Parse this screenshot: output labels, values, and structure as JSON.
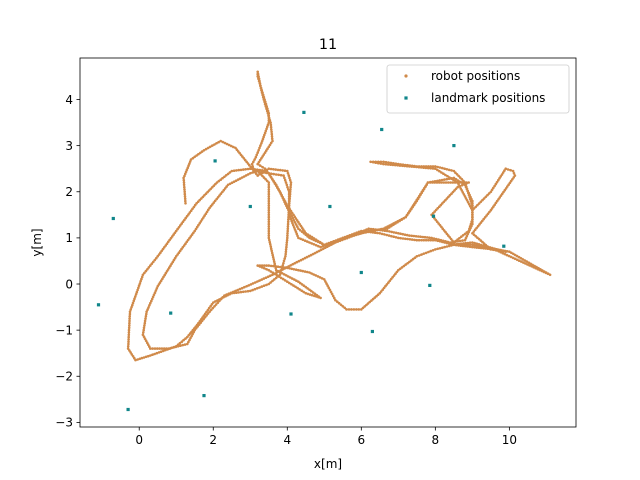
{
  "chart_data": {
    "type": "scatter",
    "title": "11",
    "xlabel": "x[m]",
    "ylabel": "y[m]",
    "xlim": [
      -1.6,
      11.8
    ],
    "ylim": [
      -3.1,
      4.9
    ],
    "xticks": [
      0,
      2,
      4,
      6,
      8,
      10
    ],
    "yticks": [
      -3,
      -2,
      -1,
      0,
      1,
      2,
      3,
      4
    ],
    "grid": false,
    "legend_position": "top-right",
    "colors": {
      "robot": "#d08a4a",
      "landmark": "#10868a"
    },
    "series": [
      {
        "name": "robot positions",
        "marker": "dot",
        "path": [
          [
            1.25,
            1.75
          ],
          [
            1.2,
            2.3
          ],
          [
            1.4,
            2.7
          ],
          [
            1.75,
            2.9
          ],
          [
            2.2,
            3.1
          ],
          [
            2.6,
            2.95
          ],
          [
            2.9,
            2.65
          ],
          [
            3.2,
            2.35
          ],
          [
            3.5,
            2.5
          ],
          [
            4.0,
            2.45
          ],
          [
            4.1,
            2.2
          ],
          [
            4.05,
            1.7
          ],
          [
            4.0,
            1.0
          ],
          [
            3.95,
            0.6
          ],
          [
            3.8,
            0.2
          ],
          [
            3.5,
            0.0
          ],
          [
            3.0,
            -0.15
          ],
          [
            2.5,
            -0.2
          ],
          [
            2.0,
            -0.4
          ],
          [
            1.6,
            -0.85
          ],
          [
            1.3,
            -1.15
          ],
          [
            1.0,
            -1.35
          ],
          [
            0.3,
            -1.55
          ],
          [
            -0.1,
            -1.65
          ],
          [
            -0.3,
            -1.4
          ],
          [
            -0.25,
            -0.6
          ],
          [
            0.1,
            0.2
          ],
          [
            0.5,
            0.6
          ],
          [
            1.0,
            1.15
          ],
          [
            1.55,
            1.75
          ],
          [
            2.1,
            2.2
          ],
          [
            2.5,
            2.45
          ],
          [
            3.0,
            2.5
          ],
          [
            3.45,
            2.45
          ],
          [
            3.7,
            2.15
          ],
          [
            4.0,
            1.7
          ],
          [
            4.5,
            1.1
          ],
          [
            5.0,
            0.85
          ],
          [
            5.5,
            1.0
          ],
          [
            6.0,
            1.15
          ],
          [
            6.5,
            1.1
          ],
          [
            7.0,
            1.0
          ],
          [
            7.5,
            0.95
          ],
          [
            8.0,
            0.95
          ],
          [
            8.5,
            0.85
          ],
          [
            9.0,
            0.8
          ],
          [
            9.6,
            0.75
          ],
          [
            11.1,
            0.2
          ],
          [
            10.0,
            0.7
          ],
          [
            9.0,
            0.85
          ],
          [
            8.5,
            0.85
          ],
          [
            8.0,
            0.75
          ],
          [
            7.5,
            0.6
          ],
          [
            7.0,
            0.3
          ],
          [
            6.5,
            -0.2
          ],
          [
            6.0,
            -0.55
          ],
          [
            5.6,
            -0.55
          ],
          [
            5.3,
            -0.35
          ],
          [
            5.0,
            0.1
          ],
          [
            4.6,
            0.25
          ],
          [
            4.0,
            0.35
          ],
          [
            3.5,
            0.4
          ],
          [
            3.2,
            0.4
          ],
          [
            3.5,
            0.3
          ],
          [
            4.0,
            0.05
          ],
          [
            4.5,
            -0.2
          ],
          [
            4.9,
            -0.3
          ],
          [
            4.3,
            0.05
          ],
          [
            3.7,
            0.3
          ],
          [
            3.5,
            1.0
          ],
          [
            3.5,
            1.5
          ],
          [
            3.5,
            2.2
          ],
          [
            3.2,
            2.45
          ],
          [
            3.0,
            2.4
          ],
          [
            2.4,
            2.15
          ],
          [
            1.9,
            1.65
          ],
          [
            1.5,
            1.15
          ],
          [
            1.0,
            0.6
          ],
          [
            0.5,
            -0.05
          ],
          [
            0.2,
            -0.6
          ],
          [
            0.1,
            -1.1
          ],
          [
            0.3,
            -1.4
          ],
          [
            0.8,
            -1.4
          ],
          [
            1.3,
            -1.3
          ],
          [
            1.5,
            -1.0
          ],
          [
            1.9,
            -0.6
          ],
          [
            2.3,
            -0.25
          ],
          [
            2.9,
            -0.05
          ],
          [
            3.6,
            0.2
          ],
          [
            4.2,
            0.45
          ],
          [
            4.7,
            0.65
          ],
          [
            5.3,
            0.9
          ],
          [
            5.8,
            1.05
          ],
          [
            6.2,
            1.15
          ],
          [
            6.7,
            1.2
          ],
          [
            7.2,
            1.45
          ],
          [
            7.5,
            1.8
          ],
          [
            7.8,
            2.2
          ],
          [
            8.5,
            2.3
          ],
          [
            8.8,
            2.15
          ],
          [
            9.0,
            1.8
          ],
          [
            9.0,
            1.4
          ],
          [
            8.9,
            1.15
          ],
          [
            8.5,
            0.9
          ],
          [
            7.9,
            1.5
          ],
          [
            8.6,
            2.1
          ],
          [
            8.9,
            2.2
          ],
          [
            7.8,
            2.2
          ],
          [
            7.2,
            1.45
          ],
          [
            6.6,
            1.2
          ],
          [
            6.0,
            1.1
          ],
          [
            5.5,
            1.0
          ],
          [
            5.2,
            0.9
          ],
          [
            5.0,
            0.85
          ],
          [
            4.6,
            1.0
          ],
          [
            4.3,
            1.2
          ],
          [
            4.0,
            1.65
          ],
          [
            3.8,
            2.0
          ],
          [
            3.5,
            2.4
          ],
          [
            3.4,
            2.5
          ],
          [
            3.2,
            2.6
          ],
          [
            3.4,
            2.85
          ],
          [
            3.6,
            3.1
          ],
          [
            3.55,
            3.5
          ],
          [
            3.4,
            3.9
          ],
          [
            3.3,
            4.2
          ],
          [
            3.2,
            4.6
          ],
          [
            3.2,
            4.5
          ],
          [
            3.35,
            4.1
          ],
          [
            3.5,
            3.7
          ],
          [
            3.5,
            3.5
          ],
          [
            3.3,
            3.05
          ],
          [
            3.15,
            2.75
          ],
          [
            3.05,
            2.6
          ],
          [
            3.1,
            2.45
          ],
          [
            3.5,
            2.4
          ],
          [
            3.9,
            2.35
          ],
          [
            4.05,
            2.0
          ],
          [
            4.05,
            1.5
          ],
          [
            4.3,
            1.0
          ],
          [
            4.9,
            0.8
          ],
          [
            5.4,
            0.95
          ],
          [
            5.9,
            1.1
          ],
          [
            6.2,
            1.2
          ],
          [
            6.7,
            1.15
          ],
          [
            7.3,
            1.05
          ],
          [
            7.9,
            1.0
          ],
          [
            8.4,
            0.9
          ],
          [
            8.8,
            0.95
          ],
          [
            9.0,
            1.3
          ],
          [
            9.0,
            1.7
          ],
          [
            8.8,
            2.2
          ],
          [
            8.5,
            2.45
          ],
          [
            8.0,
            2.55
          ],
          [
            7.5,
            2.55
          ],
          [
            7.0,
            2.6
          ],
          [
            6.6,
            2.65
          ],
          [
            6.25,
            2.65
          ],
          [
            6.6,
            2.6
          ],
          [
            7.3,
            2.55
          ],
          [
            8.0,
            2.5
          ],
          [
            8.6,
            2.2
          ],
          [
            9.0,
            1.6
          ],
          [
            9.5,
            2.0
          ],
          [
            9.9,
            2.5
          ],
          [
            10.1,
            2.45
          ],
          [
            10.15,
            2.35
          ],
          [
            9.5,
            1.6
          ],
          [
            9.0,
            1.1
          ],
          [
            9.5,
            0.75
          ],
          [
            9.9,
            0.7
          ],
          [
            9.0,
            0.9
          ],
          [
            8.4,
            0.85
          ]
        ]
      },
      {
        "name": "landmark positions",
        "marker": "square",
        "points": [
          [
            -1.1,
            -0.45
          ],
          [
            -0.7,
            1.42
          ],
          [
            -0.3,
            -2.72
          ],
          [
            0.85,
            -0.63
          ],
          [
            1.75,
            -2.42
          ],
          [
            2.05,
            2.67
          ],
          [
            3.0,
            1.68
          ],
          [
            4.1,
            -0.65
          ],
          [
            4.45,
            3.72
          ],
          [
            5.15,
            1.68
          ],
          [
            6.0,
            0.25
          ],
          [
            6.3,
            -1.03
          ],
          [
            6.55,
            3.35
          ],
          [
            7.85,
            -0.03
          ],
          [
            7.95,
            1.47
          ],
          [
            8.5,
            3.0
          ],
          [
            9.85,
            0.82
          ]
        ]
      }
    ]
  }
}
